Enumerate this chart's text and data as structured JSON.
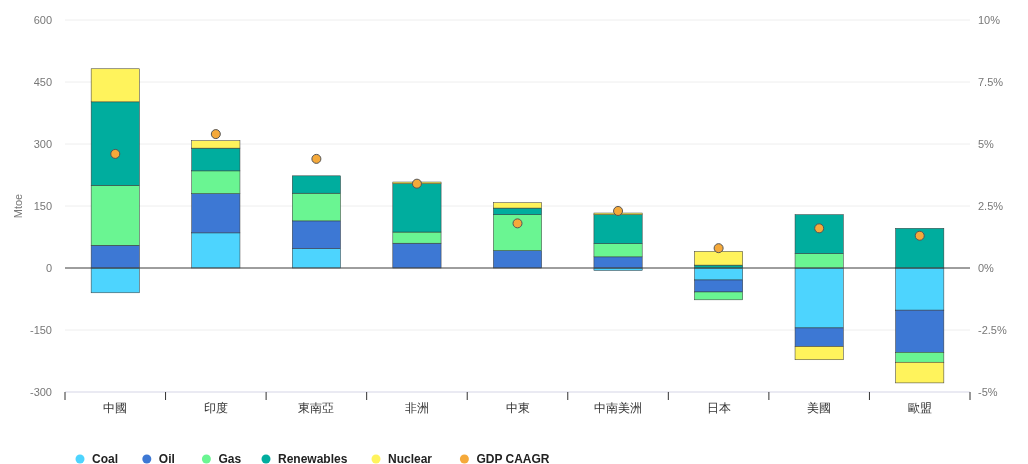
{
  "chart_data": {
    "type": "bar",
    "stacked": true,
    "ylabel": "Mtoe",
    "categories": [
      "中國",
      "印度",
      "東南亞",
      "非洲",
      "中東",
      "中南美洲",
      "日本",
      "美國",
      "歐盟"
    ],
    "series": [
      {
        "name": "Coal",
        "color": "#4dd4fe",
        "values": [
          -60,
          85,
          47,
          null,
          null,
          -6,
          -29,
          -145,
          -102
        ]
      },
      {
        "name": "Oil",
        "color": "#3d78d4",
        "values": [
          55,
          95,
          67,
          60,
          42,
          27,
          -29,
          -45,
          -102
        ]
      },
      {
        "name": "Gas",
        "color": "#6af592",
        "values": [
          145,
          55,
          67,
          27,
          87,
          32,
          -19,
          35,
          -24
        ]
      },
      {
        "name": "Renewables",
        "color": "#00ad9e",
        "values": [
          202,
          55,
          42,
          117,
          16,
          70,
          7,
          94,
          96
        ]
      },
      {
        "name": "Nuclear",
        "color": "#fff35c",
        "values": [
          80,
          18,
          null,
          4,
          13,
          4,
          33,
          -32,
          -50
        ]
      },
      {
        "name": "GDP CAAGR",
        "type": "scatter",
        "axis": "y2",
        "color": "#f5a93a",
        "x": [
          "中國",
          "印度",
          "東南亞",
          "非洲",
          "中東",
          "中南美洲",
          "日本",
          "美國",
          "歐盟"
        ],
        "values": [
          4.6,
          5.4,
          4.4,
          3.4,
          1.8,
          2.3,
          0.8,
          1.6,
          1.3
        ]
      }
    ],
    "ylim": [
      -300,
      600
    ],
    "yticks": [
      -300,
      -150,
      0,
      150,
      300,
      450,
      600
    ],
    "y2lim": [
      -5,
      10
    ],
    "y2ticks": [
      {
        "value": -5,
        "label": "-5%"
      },
      {
        "value": -2.5,
        "label": "-2.5%"
      },
      {
        "value": 0,
        "label": "0%"
      },
      {
        "value": 2.5,
        "label": "2.5%"
      },
      {
        "value": 5,
        "label": "5%"
      },
      {
        "value": 7.5,
        "label": "7.5%"
      },
      {
        "value": 10,
        "label": "10%"
      }
    ],
    "grid": "y",
    "legend": "bottom left",
    "marker": "circle"
  }
}
